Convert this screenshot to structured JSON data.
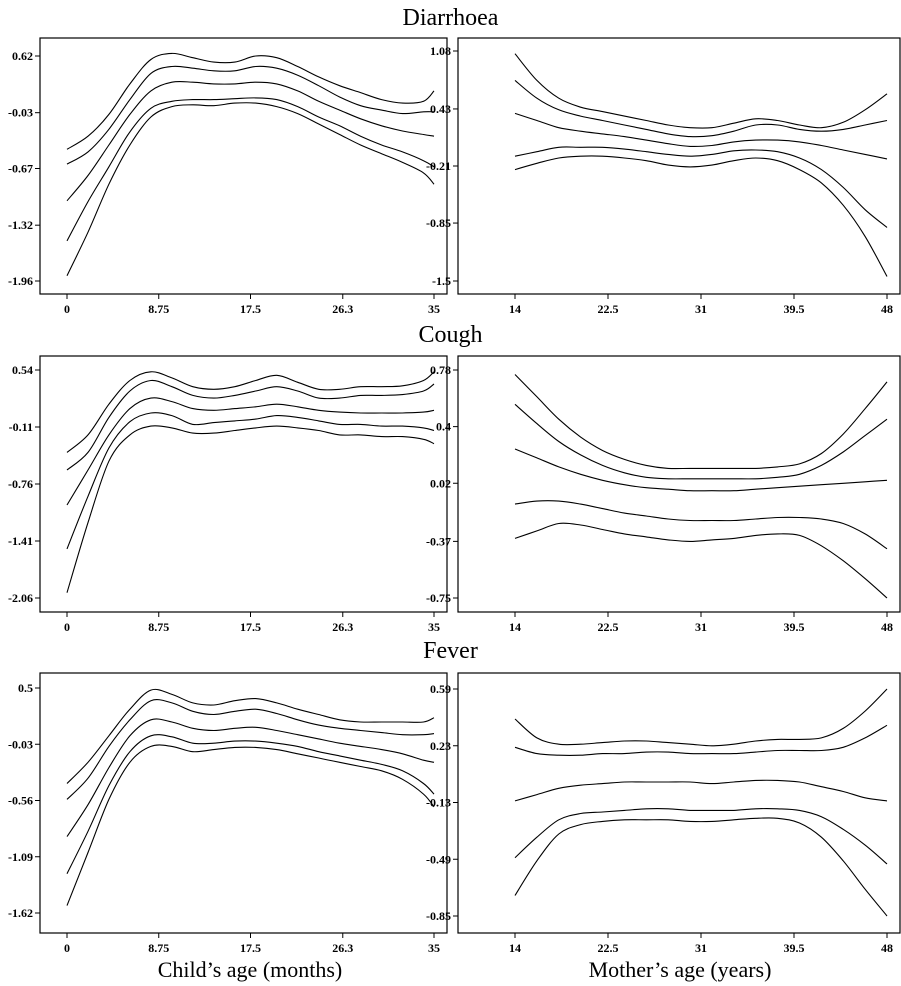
{
  "row_titles": [
    "Diarrhoea",
    "Cough",
    "Fever"
  ],
  "x_titles": [
    "Child’s age (months)",
    "Mother’s age (years)"
  ],
  "line_color": "#000000",
  "chart_data": [
    {
      "type": "line",
      "row": "Diarrhoea",
      "col": "child",
      "xlim": [
        0,
        35
      ],
      "ylim": [
        -1.96,
        0.62
      ],
      "xticks": [
        0,
        8.75,
        17.5,
        26.3,
        35
      ],
      "xtick_labels": [
        "0",
        "8.75",
        "17.5",
        "26.3",
        "35"
      ],
      "yticks": [
        -1.96,
        -1.32,
        -0.67,
        -0.03,
        0.62
      ],
      "ytick_labels": [
        "-1.96",
        "-1.32",
        "-0.67",
        "-0.03",
        "0.62"
      ],
      "x": [
        0,
        2,
        4,
        6,
        8,
        10,
        12,
        14,
        16,
        18,
        20,
        22,
        24,
        26,
        28,
        30,
        32,
        34,
        35
      ],
      "series": [
        {
          "values": [
            -0.45,
            -0.3,
            -0.05,
            0.3,
            0.58,
            0.65,
            0.6,
            0.55,
            0.55,
            0.62,
            0.6,
            0.5,
            0.38,
            0.28,
            0.2,
            0.12,
            0.08,
            0.1,
            0.22
          ]
        },
        {
          "values": [
            -0.62,
            -0.48,
            -0.22,
            0.12,
            0.42,
            0.5,
            0.48,
            0.45,
            0.45,
            0.5,
            0.48,
            0.4,
            0.28,
            0.15,
            0.05,
            0.0,
            -0.04,
            -0.02,
            -0.02
          ]
        },
        {
          "values": [
            -1.04,
            -0.75,
            -0.4,
            -0.05,
            0.22,
            0.32,
            0.32,
            0.3,
            0.3,
            0.32,
            0.3,
            0.22,
            0.1,
            0.0,
            -0.1,
            -0.18,
            -0.24,
            -0.28,
            -0.3
          ]
        },
        {
          "values": [
            -1.5,
            -1.05,
            -0.65,
            -0.25,
            0.02,
            0.1,
            0.12,
            0.12,
            0.13,
            0.14,
            0.12,
            0.04,
            -0.08,
            -0.18,
            -0.3,
            -0.4,
            -0.48,
            -0.58,
            -0.65
          ]
        },
        {
          "values": [
            -1.9,
            -1.4,
            -0.85,
            -0.4,
            -0.08,
            0.04,
            0.06,
            0.05,
            0.08,
            0.08,
            0.04,
            -0.04,
            -0.16,
            -0.28,
            -0.4,
            -0.5,
            -0.6,
            -0.72,
            -0.85
          ]
        }
      ]
    },
    {
      "type": "line",
      "row": "Diarrhoea",
      "col": "mother",
      "xlim": [
        14,
        48
      ],
      "ylim": [
        -1.5,
        1.08
      ],
      "xticks": [
        14,
        22.5,
        31,
        39.5,
        48
      ],
      "xtick_labels": [
        "14",
        "22.5",
        "31",
        "39.5",
        "48"
      ],
      "yticks": [
        -1.5,
        -0.85,
        -0.21,
        0.43,
        1.08
      ],
      "ytick_labels": [
        "-1.5",
        "-0.85",
        "-0.21",
        "0.43",
        "1.08"
      ],
      "x": [
        14,
        16,
        18,
        20,
        22,
        24,
        26,
        28,
        30,
        32,
        34,
        36,
        38,
        40,
        42,
        44,
        46,
        48
      ],
      "series": [
        {
          "values": [
            1.05,
            0.75,
            0.55,
            0.45,
            0.4,
            0.35,
            0.3,
            0.25,
            0.22,
            0.22,
            0.27,
            0.32,
            0.3,
            0.25,
            0.22,
            0.28,
            0.42,
            0.6
          ]
        },
        {
          "values": [
            0.75,
            0.55,
            0.42,
            0.35,
            0.3,
            0.25,
            0.2,
            0.15,
            0.12,
            0.13,
            0.18,
            0.25,
            0.25,
            0.2,
            0.18,
            0.2,
            0.25,
            0.3
          ]
        },
        {
          "values": [
            0.38,
            0.3,
            0.22,
            0.18,
            0.15,
            0.12,
            0.08,
            0.04,
            0.01,
            0.02,
            0.06,
            0.08,
            0.08,
            0.06,
            0.02,
            -0.03,
            -0.08,
            -0.13
          ]
        },
        {
          "values": [
            -0.1,
            -0.05,
            0.0,
            0.0,
            0.0,
            -0.02,
            -0.05,
            -0.08,
            -0.1,
            -0.08,
            -0.04,
            -0.03,
            -0.05,
            -0.12,
            -0.25,
            -0.45,
            -0.7,
            -0.9
          ]
        },
        {
          "values": [
            -0.25,
            -0.18,
            -0.12,
            -0.1,
            -0.1,
            -0.12,
            -0.15,
            -0.2,
            -0.22,
            -0.2,
            -0.15,
            -0.12,
            -0.15,
            -0.25,
            -0.4,
            -0.65,
            -1.0,
            -1.45
          ]
        }
      ]
    },
    {
      "type": "line",
      "row": "Cough",
      "col": "child",
      "xlim": [
        0,
        35
      ],
      "ylim": [
        -2.06,
        0.54
      ],
      "xticks": [
        0,
        8.75,
        17.5,
        26.3,
        35
      ],
      "xtick_labels": [
        "0",
        "8.75",
        "17.5",
        "26.3",
        "35"
      ],
      "yticks": [
        -2.06,
        -1.41,
        -0.76,
        -0.11,
        0.54
      ],
      "ytick_labels": [
        "-2.06",
        "-1.41",
        "-0.76",
        "-0.11",
        "0.54"
      ],
      "x": [
        0,
        2,
        4,
        6,
        8,
        10,
        12,
        14,
        16,
        18,
        20,
        22,
        24,
        26,
        28,
        30,
        32,
        34,
        35
      ],
      "series": [
        {
          "values": [
            -0.4,
            -0.2,
            0.15,
            0.42,
            0.52,
            0.45,
            0.35,
            0.32,
            0.35,
            0.42,
            0.48,
            0.4,
            0.32,
            0.32,
            0.35,
            0.35,
            0.36,
            0.42,
            0.52
          ]
        },
        {
          "values": [
            -0.6,
            -0.4,
            0.0,
            0.3,
            0.42,
            0.35,
            0.25,
            0.22,
            0.25,
            0.3,
            0.35,
            0.3,
            0.22,
            0.22,
            0.25,
            0.25,
            0.26,
            0.3,
            0.38
          ]
        },
        {
          "values": [
            -1.0,
            -0.6,
            -0.2,
            0.1,
            0.22,
            0.18,
            0.1,
            0.08,
            0.1,
            0.12,
            0.15,
            0.12,
            0.08,
            0.06,
            0.05,
            0.05,
            0.05,
            0.06,
            0.08
          ]
        },
        {
          "values": [
            -1.5,
            -0.9,
            -0.35,
            -0.05,
            0.05,
            0.02,
            -0.08,
            -0.06,
            -0.04,
            -0.02,
            0.02,
            0.0,
            -0.04,
            -0.08,
            -0.08,
            -0.1,
            -0.1,
            -0.12,
            -0.15
          ]
        },
        {
          "values": [
            -2.0,
            -1.2,
            -0.5,
            -0.2,
            -0.1,
            -0.12,
            -0.18,
            -0.18,
            -0.15,
            -0.12,
            -0.1,
            -0.12,
            -0.15,
            -0.2,
            -0.2,
            -0.22,
            -0.22,
            -0.25,
            -0.3
          ]
        }
      ]
    },
    {
      "type": "line",
      "row": "Cough",
      "col": "mother",
      "xlim": [
        14,
        48
      ],
      "ylim": [
        -0.75,
        0.78
      ],
      "xticks": [
        14,
        22.5,
        31,
        39.5,
        48
      ],
      "xtick_labels": [
        "14",
        "22.5",
        "31",
        "39.5",
        "48"
      ],
      "yticks": [
        -0.75,
        -0.37,
        0.02,
        0.4,
        0.78
      ],
      "ytick_labels": [
        "-0.75",
        "-0.37",
        "0.02",
        "0.4",
        "0.78"
      ],
      "x": [
        14,
        16,
        18,
        20,
        22,
        24,
        26,
        28,
        30,
        32,
        34,
        36,
        38,
        40,
        42,
        44,
        46,
        48
      ],
      "series": [
        {
          "values": [
            0.75,
            0.6,
            0.45,
            0.33,
            0.24,
            0.18,
            0.14,
            0.12,
            0.12,
            0.12,
            0.12,
            0.12,
            0.13,
            0.15,
            0.22,
            0.35,
            0.52,
            0.7
          ]
        },
        {
          "values": [
            0.55,
            0.42,
            0.3,
            0.21,
            0.14,
            0.09,
            0.06,
            0.05,
            0.05,
            0.05,
            0.05,
            0.05,
            0.06,
            0.08,
            0.14,
            0.23,
            0.34,
            0.45
          ]
        },
        {
          "values": [
            0.25,
            0.19,
            0.13,
            0.08,
            0.04,
            0.01,
            -0.01,
            -0.02,
            -0.03,
            -0.03,
            -0.03,
            -0.02,
            -0.01,
            0.0,
            0.01,
            0.02,
            0.03,
            0.04
          ]
        },
        {
          "values": [
            -0.12,
            -0.1,
            -0.1,
            -0.12,
            -0.15,
            -0.18,
            -0.2,
            -0.22,
            -0.23,
            -0.23,
            -0.23,
            -0.22,
            -0.21,
            -0.21,
            -0.22,
            -0.25,
            -0.32,
            -0.42
          ]
        },
        {
          "values": [
            -0.35,
            -0.3,
            -0.25,
            -0.26,
            -0.29,
            -0.32,
            -0.34,
            -0.36,
            -0.37,
            -0.36,
            -0.35,
            -0.33,
            -0.32,
            -0.33,
            -0.4,
            -0.5,
            -0.62,
            -0.75
          ]
        }
      ]
    },
    {
      "type": "line",
      "row": "Fever",
      "col": "child",
      "xlim": [
        0,
        35
      ],
      "ylim": [
        -1.62,
        0.5
      ],
      "xticks": [
        0,
        8.75,
        17.5,
        26.3,
        35
      ],
      "xtick_labels": [
        "0",
        "8.75",
        "17.5",
        "26.3",
        "35"
      ],
      "yticks": [
        -1.62,
        -1.09,
        -0.56,
        -0.03,
        0.5
      ],
      "ytick_labels": [
        "-1.62",
        "-1.09",
        "-0.56",
        "-0.03",
        "0.5"
      ],
      "x": [
        0,
        2,
        4,
        6,
        8,
        10,
        12,
        14,
        16,
        18,
        20,
        22,
        24,
        26,
        28,
        30,
        32,
        34,
        35
      ],
      "series": [
        {
          "values": [
            -0.4,
            -0.2,
            0.05,
            0.3,
            0.48,
            0.44,
            0.36,
            0.34,
            0.38,
            0.4,
            0.36,
            0.3,
            0.25,
            0.2,
            0.18,
            0.18,
            0.18,
            0.18,
            0.22
          ]
        },
        {
          "values": [
            -0.55,
            -0.35,
            -0.05,
            0.2,
            0.38,
            0.36,
            0.28,
            0.25,
            0.28,
            0.3,
            0.26,
            0.2,
            0.15,
            0.12,
            0.1,
            0.08,
            0.06,
            0.06,
            0.07
          ]
        },
        {
          "values": [
            -0.9,
            -0.6,
            -0.25,
            0.05,
            0.2,
            0.18,
            0.12,
            0.1,
            0.12,
            0.13,
            0.1,
            0.06,
            0.02,
            -0.02,
            -0.05,
            -0.08,
            -0.12,
            -0.18,
            -0.2
          ]
        },
        {
          "values": [
            -1.25,
            -0.85,
            -0.42,
            -0.1,
            0.05,
            0.04,
            -0.02,
            -0.02,
            0.0,
            0.0,
            -0.02,
            -0.05,
            -0.1,
            -0.14,
            -0.18,
            -0.22,
            -0.28,
            -0.4,
            -0.5
          ]
        },
        {
          "values": [
            -1.55,
            -1.05,
            -0.55,
            -0.2,
            -0.05,
            -0.05,
            -0.1,
            -0.08,
            -0.06,
            -0.06,
            -0.08,
            -0.12,
            -0.16,
            -0.2,
            -0.24,
            -0.28,
            -0.36,
            -0.5,
            -0.62
          ]
        }
      ]
    },
    {
      "type": "line",
      "row": "Fever",
      "col": "mother",
      "xlim": [
        14,
        48
      ],
      "ylim": [
        -0.85,
        0.59
      ],
      "xticks": [
        14,
        22.5,
        31,
        39.5,
        48
      ],
      "xtick_labels": [
        "14",
        "22.5",
        "31",
        "39.5",
        "48"
      ],
      "yticks": [
        -0.85,
        -0.49,
        -0.13,
        0.23,
        0.59
      ],
      "ytick_labels": [
        "-0.85",
        "-0.49",
        "-0.13",
        "0.23",
        "0.59"
      ],
      "x": [
        14,
        16,
        18,
        20,
        22,
        24,
        26,
        28,
        30,
        32,
        34,
        36,
        38,
        40,
        42,
        44,
        46,
        48
      ],
      "series": [
        {
          "values": [
            0.4,
            0.28,
            0.24,
            0.24,
            0.25,
            0.26,
            0.26,
            0.25,
            0.24,
            0.23,
            0.24,
            0.26,
            0.27,
            0.27,
            0.28,
            0.34,
            0.45,
            0.59
          ]
        },
        {
          "values": [
            0.22,
            0.18,
            0.17,
            0.17,
            0.18,
            0.18,
            0.19,
            0.19,
            0.18,
            0.18,
            0.18,
            0.19,
            0.2,
            0.2,
            0.2,
            0.22,
            0.28,
            0.36
          ]
        },
        {
          "values": [
            -0.12,
            -0.08,
            -0.04,
            -0.02,
            -0.01,
            0.0,
            0.0,
            0.0,
            0.0,
            -0.01,
            0.0,
            0.01,
            0.01,
            0.0,
            -0.03,
            -0.06,
            -0.1,
            -0.12
          ]
        },
        {
          "values": [
            -0.48,
            -0.35,
            -0.24,
            -0.2,
            -0.19,
            -0.18,
            -0.17,
            -0.17,
            -0.18,
            -0.18,
            -0.18,
            -0.17,
            -0.17,
            -0.18,
            -0.22,
            -0.3,
            -0.4,
            -0.52
          ]
        },
        {
          "values": [
            -0.72,
            -0.5,
            -0.33,
            -0.27,
            -0.25,
            -0.24,
            -0.24,
            -0.24,
            -0.25,
            -0.25,
            -0.24,
            -0.23,
            -0.23,
            -0.26,
            -0.35,
            -0.5,
            -0.68,
            -0.85
          ]
        }
      ]
    }
  ]
}
